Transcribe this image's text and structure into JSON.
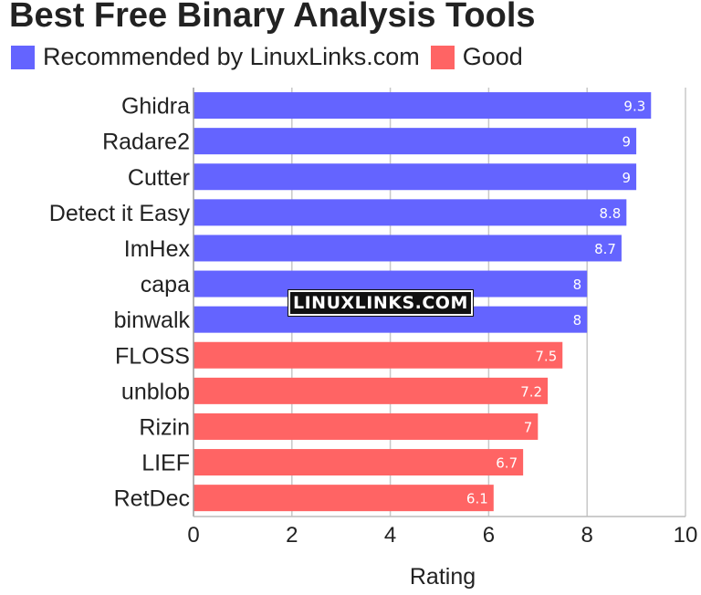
{
  "chart_data": {
    "type": "bar",
    "orientation": "horizontal",
    "title": "Best Free Binary Analysis Tools",
    "xlabel": "Rating",
    "ylabel": "",
    "xlim": [
      0,
      10
    ],
    "xticks": [
      0,
      2,
      4,
      6,
      8,
      10
    ],
    "grid": true,
    "legend_position": "top-left",
    "series": [
      {
        "name": "Recommended by LinuxLinks.com",
        "color": "#6464ff"
      },
      {
        "name": "Good",
        "color": "#ff6464"
      }
    ],
    "bars": [
      {
        "label": "Ghidra",
        "value": 9.3,
        "series": 0,
        "value_label": "9.3"
      },
      {
        "label": "Radare2",
        "value": 9,
        "series": 0,
        "value_label": "9"
      },
      {
        "label": "Cutter",
        "value": 9,
        "series": 0,
        "value_label": "9"
      },
      {
        "label": "Detect it Easy",
        "value": 8.8,
        "series": 0,
        "value_label": "8.8"
      },
      {
        "label": "ImHex",
        "value": 8.7,
        "series": 0,
        "value_label": "8.7"
      },
      {
        "label": "capa",
        "value": 8,
        "series": 0,
        "value_label": "8"
      },
      {
        "label": "binwalk",
        "value": 8,
        "series": 0,
        "value_label": "8"
      },
      {
        "label": "FLOSS",
        "value": 7.5,
        "series": 1,
        "value_label": "7.5"
      },
      {
        "label": "unblob",
        "value": 7.2,
        "series": 1,
        "value_label": "7.2"
      },
      {
        "label": "Rizin",
        "value": 7,
        "series": 1,
        "value_label": "7"
      },
      {
        "label": "LIEF",
        "value": 6.7,
        "series": 1,
        "value_label": "6.7"
      },
      {
        "label": "RetDec",
        "value": 6.1,
        "series": 1,
        "value_label": "6.1"
      }
    ]
  },
  "watermark": "LINUXLINKS.COM"
}
